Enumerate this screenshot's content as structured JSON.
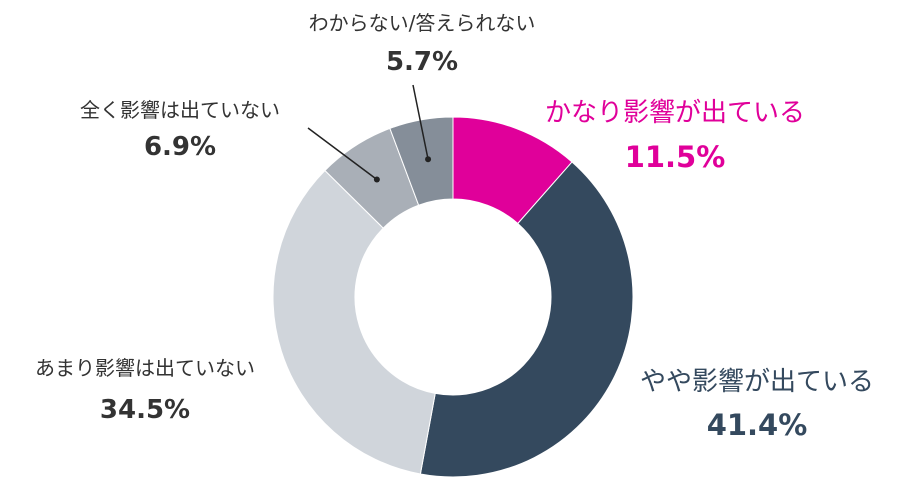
{
  "chart_data": {
    "type": "pie",
    "variant": "donut",
    "title": "",
    "start": "top",
    "direction": "clockwise",
    "slices": [
      {
        "label": "かなり影響が出ている",
        "value": 11.5,
        "value_label": "11.5%",
        "color": "#E0009A",
        "label_color": "#E0009A"
      },
      {
        "label": "やや影響が出ている",
        "value": 41.4,
        "value_label": "41.4%",
        "color": "#34495E",
        "label_color": "#34495E"
      },
      {
        "label": "あまり影響は出ていない",
        "value": 34.5,
        "value_label": "34.5%",
        "color": "#D0D5DB",
        "label_color": "#333333"
      },
      {
        "label": "全く影響は出ていない",
        "value": 6.9,
        "value_label": "6.9%",
        "color": "#A9AFB7",
        "label_color": "#333333"
      },
      {
        "label": "わからない/答えられない",
        "value": 5.7,
        "value_label": "5.7%",
        "color": "#858E99",
        "label_color": "#333333"
      }
    ]
  }
}
